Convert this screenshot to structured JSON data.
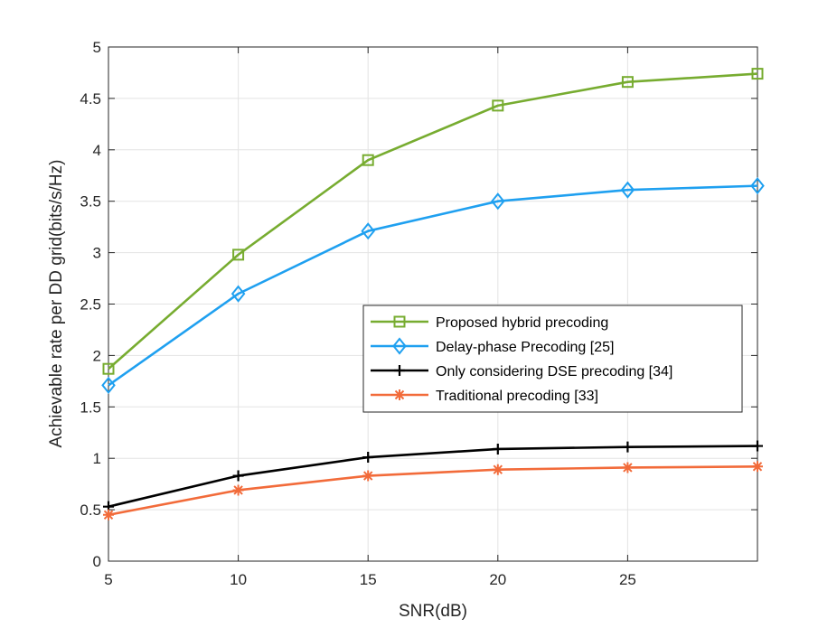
{
  "chart_data": {
    "type": "line",
    "title": "",
    "xlabel": "SNR(dB)",
    "ylabel": "Achievable rate per DD grid(bits/s/Hz)",
    "xlim": [
      5,
      30
    ],
    "ylim": [
      0,
      5
    ],
    "xticks": [
      5,
      10,
      15,
      20,
      25
    ],
    "xtick_labels": [
      "5",
      "10",
      "15",
      "20",
      "25"
    ],
    "yticks": [
      0,
      0.5,
      1,
      1.5,
      2,
      2.5,
      3,
      3.5,
      4,
      4.5,
      5
    ],
    "ytick_labels": [
      "0",
      "0.5",
      "1",
      "1.5",
      "2",
      "2.5",
      "3",
      "3.5",
      "4",
      "4.5",
      "5"
    ],
    "grid": true,
    "legend_position": "center-right",
    "x": [
      5,
      10,
      15,
      20,
      25,
      30
    ],
    "series": [
      {
        "name": "Proposed hybrid precoding",
        "color": "#77AC30",
        "marker": "square",
        "values": [
          1.87,
          2.98,
          3.9,
          4.43,
          4.66,
          4.74
        ]
      },
      {
        "name": "Delay-phase Precoding [25]",
        "color": "#1FA0F0",
        "marker": "diamond",
        "values": [
          1.71,
          2.6,
          3.21,
          3.5,
          3.61,
          3.65
        ]
      },
      {
        "name": "Only considering DSE precoding [34]",
        "color": "#000000",
        "marker": "plus",
        "values": [
          0.53,
          0.83,
          1.01,
          1.09,
          1.11,
          1.12
        ]
      },
      {
        "name": "Traditional precoding [33]",
        "color": "#F26B3A",
        "marker": "asterisk",
        "values": [
          0.45,
          0.69,
          0.83,
          0.89,
          0.91,
          0.92
        ]
      }
    ]
  }
}
